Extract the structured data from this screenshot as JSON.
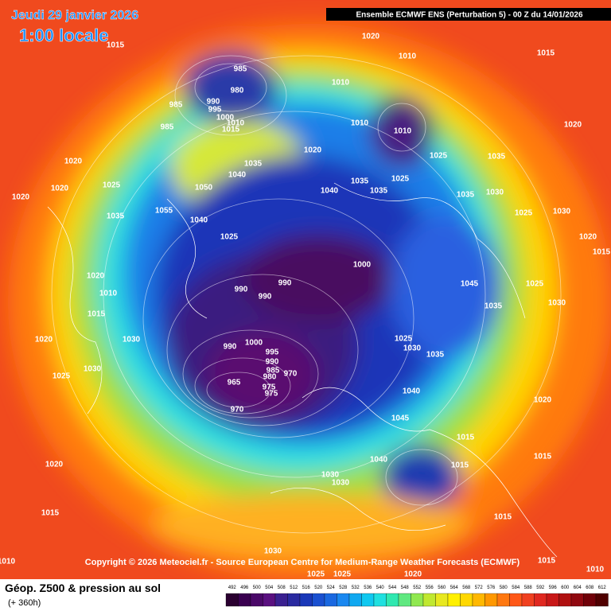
{
  "header": {
    "date": "Jeudi 29 janvier 2026",
    "time": "1:00 locale",
    "model": "Ensemble ECMWF ENS  (Perturbation 5)  -  00 Z du 14/01/2026"
  },
  "map": {
    "pressure_labels": [
      1020,
      1010,
      1015,
      1015,
      985,
      980,
      1010,
      985,
      990,
      995,
      1000,
      985,
      1010,
      1015,
      1010,
      1010,
      1020,
      1020,
      1025,
      1035,
      1020,
      1035,
      1040,
      1050,
      1040,
      1035,
      1025,
      1035,
      1035,
      1030,
      1025,
      1020,
      1020,
      1055,
      1040,
      1025,
      1035,
      1025,
      1030,
      1020,
      1015,
      1000,
      990,
      990,
      990,
      1020,
      1010,
      1015,
      1045,
      1035,
      1025,
      1030,
      1025,
      1030,
      1035,
      1030,
      1000,
      995,
      990,
      990,
      985,
      980,
      975,
      970,
      965,
      975,
      970,
      1020,
      1025,
      1030,
      1040,
      1045,
      1015,
      1015,
      1040,
      1030,
      1030,
      1020,
      1015,
      1015,
      1020,
      1015,
      1010,
      1010,
      1025,
      1025,
      1020,
      1030,
      1015
    ]
  },
  "footer": {
    "copyright": "Copyright © 2026 Meteociel.fr - Source European Centre for Medium-Range Weather Forecasts (ECMWF)",
    "title": "Géop. Z500 & pression au sol",
    "subtitle": "(+ 360h)",
    "scale": [
      492,
      496,
      500,
      504,
      508,
      512,
      516,
      520,
      524,
      528,
      532,
      536,
      540,
      544,
      548,
      552,
      556,
      560,
      564,
      568,
      572,
      576,
      580,
      584,
      588,
      592,
      596,
      600,
      604,
      608,
      612
    ]
  }
}
